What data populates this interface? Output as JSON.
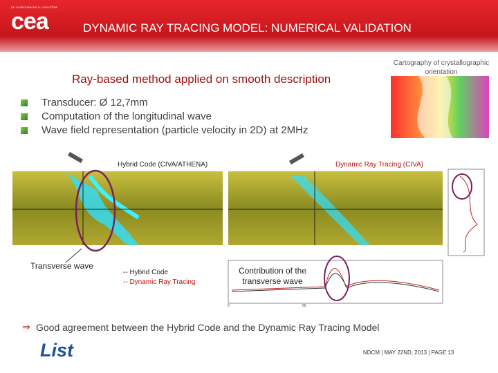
{
  "header": {
    "tagline": "DE LA RECHERCHE À L'INDUSTRIE",
    "logo": "cea",
    "title": "DYNAMIC RAY TRACING MODEL: NUMERICAL VALIDATION"
  },
  "subtitle": "Ray-based method applied on smooth description",
  "cartography_caption": "Cartography of crystallographic orientation",
  "bullets": [
    "Transducer: Ø 12,7mm",
    "Computation of the longitudinal wave",
    "Wave field representation (particle velocity in 2D) at 2MHz"
  ],
  "figures": {
    "hybrid_label": "Hybrid Code (CIVA/ATHENA)",
    "drt_label": "Dynamic Ray Tracing (CIVA)",
    "transverse_label": "Transverse wave",
    "legend": [
      "-- Hybrid Code",
      "-- Dynamic Ray Tracing"
    ],
    "contribution_label": "Contribution of the transverse wave",
    "plot_ticks": [
      "0",
      "50"
    ]
  },
  "conclusion": {
    "arrow": "⇒",
    "text": "Good agreement between the Hybrid Code and the Dynamic Ray Tracing Model"
  },
  "footer": {
    "logo": "List",
    "text": "NDCM | MAY 22ND, 2013 | PAGE 13"
  }
}
